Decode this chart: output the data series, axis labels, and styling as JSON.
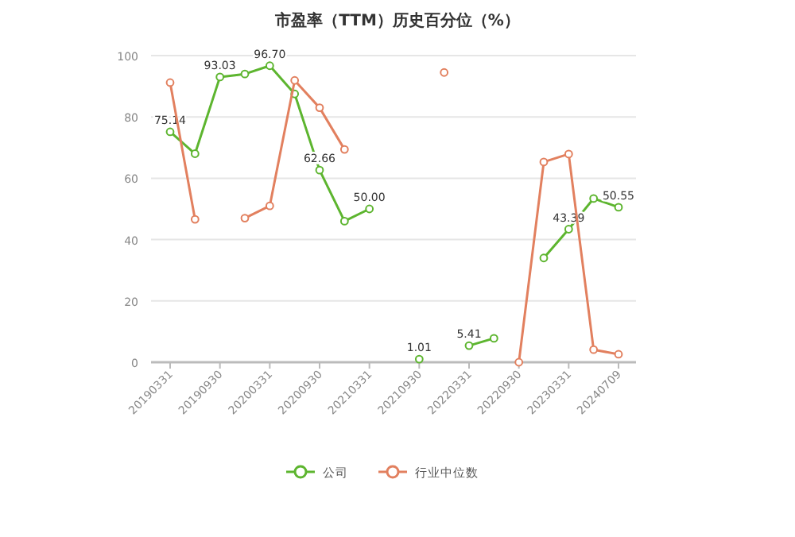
{
  "chart_data": {
    "type": "line",
    "title": "市盈率（TTM）历史百分位（%）",
    "categories": [
      "20190331",
      null,
      "20190930",
      null,
      "20200331",
      null,
      "20200930",
      null,
      "20210331",
      null,
      "20210930",
      null,
      "20220331",
      null,
      "20220930",
      null,
      "20230331",
      null,
      "20240709"
    ],
    "series": [
      {
        "name": "公司",
        "color": "#5db52f",
        "values": [
          75.14,
          68,
          93.03,
          94,
          96.7,
          87.5,
          62.66,
          46,
          50.0,
          null,
          1.01,
          null,
          5.41,
          7.8,
          null,
          34,
          43.39,
          53.4,
          50.55
        ],
        "value_labels": [
          "75.14",
          null,
          "93.03",
          null,
          "96.70",
          null,
          "62.66",
          null,
          "50.00",
          null,
          "1.01",
          null,
          "5.41",
          null,
          null,
          null,
          "43.39",
          null,
          "50.55"
        ]
      },
      {
        "name": "行业中位数",
        "color": "#e2805f",
        "values": [
          91.2,
          46.6,
          null,
          47,
          51,
          91.9,
          83,
          69.4,
          null,
          null,
          null,
          94.5,
          null,
          null,
          0,
          65.3,
          67.9,
          4.1,
          2.6
        ]
      }
    ],
    "ylim": [
      0,
      100
    ],
    "yticks": [
      0,
      20,
      40,
      60,
      80,
      100
    ],
    "grid": "y",
    "legend": "bottom",
    "marker": "circle",
    "line_style": "solid"
  }
}
